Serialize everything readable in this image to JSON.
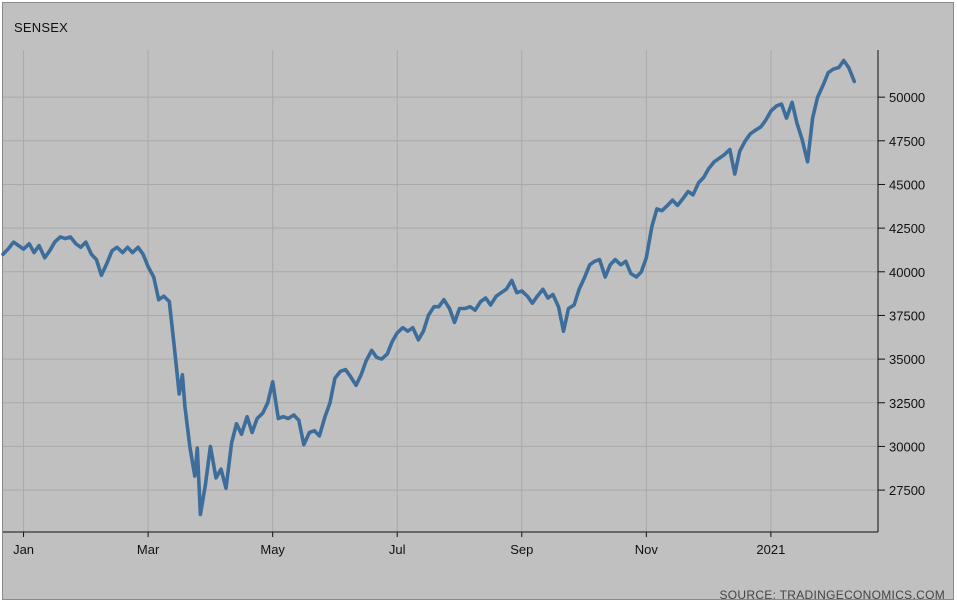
{
  "chart_data": {
    "type": "line",
    "title": "SENSEX",
    "source": "SOURCE: TRADINGECONOMICS.COM",
    "xlabel": "",
    "ylabel": "",
    "x_ticks": [
      {
        "label": "Jan",
        "month": 0.33
      },
      {
        "label": "Mar",
        "month": 2.33
      },
      {
        "label": "May",
        "month": 4.33
      },
      {
        "label": "Jul",
        "month": 6.33
      },
      {
        "label": "Sep",
        "month": 8.33
      },
      {
        "label": "Nov",
        "month": 10.33
      },
      {
        "label": "2021",
        "month": 12.33
      }
    ],
    "y_ticks": [
      27500,
      30000,
      32500,
      35000,
      37500,
      40000,
      42500,
      45000,
      47500,
      50000
    ],
    "xlim": [
      0,
      14.05
    ],
    "ylim": [
      25100,
      52700
    ],
    "grid": true,
    "legend": "none",
    "line_color": "#3d6d9a",
    "series": [
      {
        "name": "",
        "points": [
          [
            0.0,
            41000
          ],
          [
            0.08,
            41300
          ],
          [
            0.17,
            41700
          ],
          [
            0.25,
            41500
          ],
          [
            0.33,
            41300
          ],
          [
            0.42,
            41600
          ],
          [
            0.5,
            41100
          ],
          [
            0.58,
            41500
          ],
          [
            0.67,
            40800
          ],
          [
            0.75,
            41200
          ],
          [
            0.83,
            41700
          ],
          [
            0.92,
            42000
          ],
          [
            1.0,
            41900
          ],
          [
            1.08,
            42000
          ],
          [
            1.17,
            41600
          ],
          [
            1.25,
            41400
          ],
          [
            1.33,
            41700
          ],
          [
            1.42,
            41000
          ],
          [
            1.5,
            40700
          ],
          [
            1.58,
            39800
          ],
          [
            1.67,
            40500
          ],
          [
            1.75,
            41200
          ],
          [
            1.83,
            41400
          ],
          [
            1.92,
            41100
          ],
          [
            2.0,
            41400
          ],
          [
            2.08,
            41100
          ],
          [
            2.17,
            41400
          ],
          [
            2.25,
            41000
          ],
          [
            2.33,
            40300
          ],
          [
            2.42,
            39700
          ],
          [
            2.5,
            38400
          ],
          [
            2.58,
            38600
          ],
          [
            2.67,
            38300
          ],
          [
            2.75,
            35700
          ],
          [
            2.83,
            33000
          ],
          [
            2.88,
            34100
          ],
          [
            2.92,
            32300
          ],
          [
            3.0,
            30000
          ],
          [
            3.08,
            28300
          ],
          [
            3.12,
            29900
          ],
          [
            3.17,
            26100
          ],
          [
            3.25,
            27800
          ],
          [
            3.33,
            30000
          ],
          [
            3.42,
            28200
          ],
          [
            3.5,
            28700
          ],
          [
            3.58,
            27600
          ],
          [
            3.67,
            30200
          ],
          [
            3.75,
            31300
          ],
          [
            3.83,
            30700
          ],
          [
            3.92,
            31700
          ],
          [
            4.0,
            30800
          ],
          [
            4.08,
            31600
          ],
          [
            4.17,
            31900
          ],
          [
            4.25,
            32500
          ],
          [
            4.33,
            33700
          ],
          [
            4.42,
            31600
          ],
          [
            4.5,
            31700
          ],
          [
            4.58,
            31600
          ],
          [
            4.67,
            31800
          ],
          [
            4.75,
            31500
          ],
          [
            4.83,
            30100
          ],
          [
            4.92,
            30800
          ],
          [
            5.0,
            30900
          ],
          [
            5.08,
            30600
          ],
          [
            5.17,
            31700
          ],
          [
            5.25,
            32500
          ],
          [
            5.33,
            33900
          ],
          [
            5.42,
            34300
          ],
          [
            5.5,
            34400
          ],
          [
            5.58,
            34000
          ],
          [
            5.67,
            33500
          ],
          [
            5.75,
            34100
          ],
          [
            5.83,
            34900
          ],
          [
            5.92,
            35500
          ],
          [
            6.0,
            35100
          ],
          [
            6.08,
            35000
          ],
          [
            6.17,
            35300
          ],
          [
            6.25,
            36000
          ],
          [
            6.33,
            36500
          ],
          [
            6.42,
            36800
          ],
          [
            6.5,
            36600
          ],
          [
            6.58,
            36800
          ],
          [
            6.67,
            36100
          ],
          [
            6.75,
            36600
          ],
          [
            6.83,
            37500
          ],
          [
            6.92,
            38000
          ],
          [
            7.0,
            38000
          ],
          [
            7.08,
            38400
          ],
          [
            7.17,
            37900
          ],
          [
            7.25,
            37100
          ],
          [
            7.33,
            37900
          ],
          [
            7.42,
            37900
          ],
          [
            7.5,
            38000
          ],
          [
            7.58,
            37800
          ],
          [
            7.67,
            38300
          ],
          [
            7.75,
            38500
          ],
          [
            7.83,
            38100
          ],
          [
            7.92,
            38600
          ],
          [
            8.0,
            38800
          ],
          [
            8.08,
            39000
          ],
          [
            8.17,
            39500
          ],
          [
            8.25,
            38800
          ],
          [
            8.33,
            38900
          ],
          [
            8.42,
            38600
          ],
          [
            8.5,
            38200
          ],
          [
            8.58,
            38600
          ],
          [
            8.67,
            39000
          ],
          [
            8.75,
            38500
          ],
          [
            8.83,
            38700
          ],
          [
            8.92,
            38000
          ],
          [
            9.0,
            36600
          ],
          [
            9.08,
            37900
          ],
          [
            9.17,
            38100
          ],
          [
            9.25,
            39000
          ],
          [
            9.33,
            39600
          ],
          [
            9.42,
            40400
          ],
          [
            9.5,
            40600
          ],
          [
            9.58,
            40700
          ],
          [
            9.67,
            39700
          ],
          [
            9.75,
            40400
          ],
          [
            9.83,
            40700
          ],
          [
            9.92,
            40400
          ],
          [
            10.0,
            40600
          ],
          [
            10.08,
            39900
          ],
          [
            10.17,
            39700
          ],
          [
            10.25,
            40000
          ],
          [
            10.33,
            40800
          ],
          [
            10.42,
            42600
          ],
          [
            10.5,
            43600
          ],
          [
            10.58,
            43500
          ],
          [
            10.67,
            43800
          ],
          [
            10.75,
            44100
          ],
          [
            10.83,
            43800
          ],
          [
            10.92,
            44200
          ],
          [
            11.0,
            44600
          ],
          [
            11.08,
            44400
          ],
          [
            11.17,
            45100
          ],
          [
            11.25,
            45400
          ],
          [
            11.33,
            45900
          ],
          [
            11.42,
            46300
          ],
          [
            11.5,
            46500
          ],
          [
            11.58,
            46700
          ],
          [
            11.67,
            47000
          ],
          [
            11.75,
            45600
          ],
          [
            11.83,
            46900
          ],
          [
            11.92,
            47500
          ],
          [
            12.0,
            47900
          ],
          [
            12.08,
            48100
          ],
          [
            12.17,
            48300
          ],
          [
            12.25,
            48700
          ],
          [
            12.33,
            49200
          ],
          [
            12.42,
            49500
          ],
          [
            12.5,
            49600
          ],
          [
            12.58,
            48800
          ],
          [
            12.67,
            49700
          ],
          [
            12.75,
            48500
          ],
          [
            12.83,
            47600
          ],
          [
            12.92,
            46300
          ],
          [
            13.0,
            48800
          ],
          [
            13.08,
            50000
          ],
          [
            13.17,
            50700
          ],
          [
            13.25,
            51400
          ],
          [
            13.33,
            51600
          ],
          [
            13.42,
            51700
          ],
          [
            13.5,
            52100
          ],
          [
            13.58,
            51700
          ],
          [
            13.67,
            50900
          ]
        ]
      }
    ]
  }
}
